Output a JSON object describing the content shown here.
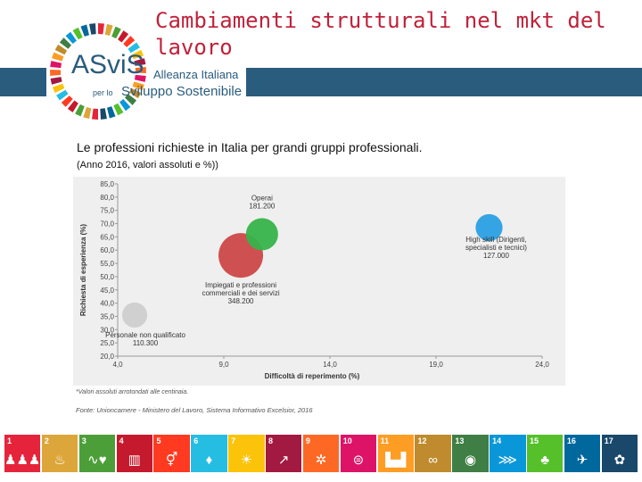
{
  "header": {
    "title": "Cambiamenti strutturali nel mkt del lavoro",
    "logo": {
      "brand": "ASviS",
      "line1": "Alleanza Italiana",
      "line2_prefix": "per lo",
      "line2_main": "Sviluppo Sostenibile"
    }
  },
  "content": {
    "subtitle": "Le professioni richieste in Italia per grandi gruppi professionali.",
    "subtitle_detail": "(Anno 2016, valori assoluti e %))",
    "note": "*Valori assoluti arrotondati alle centinaia.",
    "source": "Fonte: Unioncamere - Ministero del Lavoro, Sistema Informativo Excelsior, 2016"
  },
  "chart_data": {
    "type": "scatter",
    "xlabel": "Difficoltà di reperimento (%)",
    "ylabel": "Richiesta di esperienza (%)",
    "xlim": [
      4.0,
      24.0
    ],
    "ylim": [
      20.0,
      85.0
    ],
    "x_ticks": [
      "4,0",
      "9,0",
      "14,0",
      "19,0",
      "24,0"
    ],
    "y_ticks": [
      "20,0",
      "25,0",
      "30,0",
      "35,0",
      "40,0",
      "45,0",
      "50,0",
      "55,0",
      "60,0",
      "65,0",
      "70,0",
      "75,0",
      "80,0",
      "85,0"
    ],
    "points": [
      {
        "label": "Operai",
        "value_label": "181.200",
        "x": 10.8,
        "y": 66.0,
        "size": 181200,
        "color": "#36b34a"
      },
      {
        "label": "High skill (Dirigenti, specialisti e tecnici)",
        "label_lines": [
          "High skill (Dirigenti,",
          "specialisti e tecnici)"
        ],
        "value_label": "127.000",
        "x": 21.5,
        "y": 68.5,
        "size": 127000,
        "color": "#2a9fe3"
      },
      {
        "label": "Impiegati e professioni commerciali e dei servizi",
        "label_lines": [
          "Impiegati e professioni",
          "commerciali e dei servizi"
        ],
        "value_label": "348.200",
        "x": 9.8,
        "y": 58.0,
        "size": 348200,
        "color": "#cc4747"
      },
      {
        "label": "Personale non qualificato",
        "value_label": "110.300",
        "x": 4.8,
        "y": 35.5,
        "size": 110300,
        "color": "#cdcdcd"
      }
    ],
    "grid": false,
    "legend": "none"
  },
  "sdg_bar": [
    {
      "num": "1",
      "color": "#e5243b",
      "icon": "family-icon",
      "glyph": "♟♟♟"
    },
    {
      "num": "2",
      "color": "#dda63a",
      "icon": "bowl-icon",
      "glyph": "♨"
    },
    {
      "num": "3",
      "color": "#4c9f38",
      "icon": "heartbeat-icon",
      "glyph": "∿♥"
    },
    {
      "num": "4",
      "color": "#c5192d",
      "icon": "book-icon",
      "glyph": "▥"
    },
    {
      "num": "5",
      "color": "#ff3a21",
      "icon": "gender-icon",
      "glyph": "⚥"
    },
    {
      "num": "6",
      "color": "#26bde2",
      "icon": "water-drop-icon",
      "glyph": "♦"
    },
    {
      "num": "7",
      "color": "#fcc30b",
      "icon": "sun-icon",
      "glyph": "☀"
    },
    {
      "num": "8",
      "color": "#a21942",
      "icon": "growth-chart-icon",
      "glyph": "↗"
    },
    {
      "num": "9",
      "color": "#fd6925",
      "icon": "cube-icon",
      "glyph": "✲"
    },
    {
      "num": "10",
      "color": "#dd1367",
      "icon": "equality-icon",
      "glyph": "⊜"
    },
    {
      "num": "11",
      "color": "#fd9d24",
      "icon": "city-icon",
      "glyph": "▙▟"
    },
    {
      "num": "12",
      "color": "#bf8b2e",
      "icon": "infinity-icon",
      "glyph": "∞"
    },
    {
      "num": "13",
      "color": "#3f7e44",
      "icon": "eye-globe-icon",
      "glyph": "◉"
    },
    {
      "num": "14",
      "color": "#0a97d9",
      "icon": "fish-icon",
      "glyph": "⋙"
    },
    {
      "num": "15",
      "color": "#56c02b",
      "icon": "tree-icon",
      "glyph": "♣"
    },
    {
      "num": "16",
      "color": "#00689d",
      "icon": "dove-icon",
      "glyph": "✈"
    },
    {
      "num": "17",
      "color": "#19486a",
      "icon": "partnership-icon",
      "glyph": "✿"
    }
  ]
}
